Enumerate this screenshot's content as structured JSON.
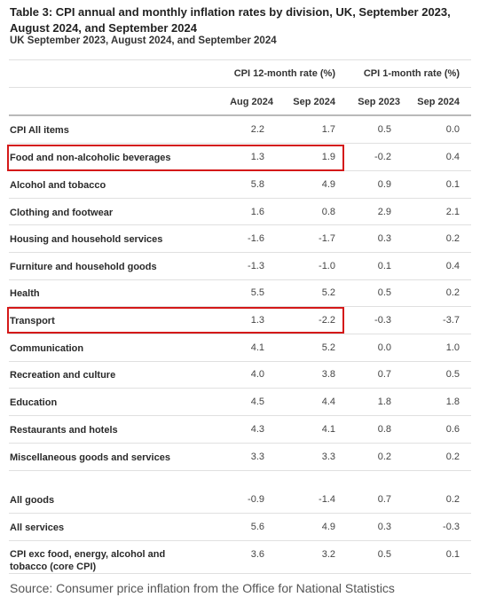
{
  "title": "Table 3: CPI annual and monthly inflation rates by division, UK, September 2023, August 2024, and September 2024",
  "subtitle": "UK September 2023, August 2024, and September 2024",
  "group_headers": {
    "annual": "CPI 12-month rate (%)",
    "monthly": "CPI 1-month rate (%)"
  },
  "columns": [
    "Aug 2024",
    "Sep 2024",
    "Sep 2023",
    "Sep 2024"
  ],
  "rows": [
    {
      "label": "CPI All items",
      "values": [
        "2.2",
        "1.7",
        "0.5",
        "0.0"
      ]
    },
    {
      "label": "Food and non-alcoholic beverages",
      "values": [
        "1.3",
        "1.9",
        "-0.2",
        "0.4"
      ]
    },
    {
      "label": "Alcohol and tobacco",
      "values": [
        "5.8",
        "4.9",
        "0.9",
        "0.1"
      ]
    },
    {
      "label": "Clothing and footwear",
      "values": [
        "1.6",
        "0.8",
        "2.9",
        "2.1"
      ]
    },
    {
      "label": "Housing and household services",
      "values": [
        "-1.6",
        "-1.7",
        "0.3",
        "0.2"
      ]
    },
    {
      "label": "Furniture and household goods",
      "values": [
        "-1.3",
        "-1.0",
        "0.1",
        "0.4"
      ]
    },
    {
      "label": "Health",
      "values": [
        "5.5",
        "5.2",
        "0.5",
        "0.2"
      ]
    },
    {
      "label": "Transport",
      "values": [
        "1.3",
        "-2.2",
        "-0.3",
        "-3.7"
      ]
    },
    {
      "label": "Communication",
      "values": [
        "4.1",
        "5.2",
        "0.0",
        "1.0"
      ]
    },
    {
      "label": "Recreation and culture",
      "values": [
        "4.0",
        "3.8",
        "0.7",
        "0.5"
      ]
    },
    {
      "label": "Education",
      "values": [
        "4.5",
        "4.4",
        "1.8",
        "1.8"
      ]
    },
    {
      "label": "Restaurants and hotels",
      "values": [
        "4.3",
        "4.1",
        "0.8",
        "0.6"
      ]
    },
    {
      "label": "Miscellaneous goods and services",
      "values": [
        "3.3",
        "3.3",
        "0.2",
        "0.2"
      ]
    },
    {
      "label": "All goods",
      "values": [
        "-0.9",
        "-1.4",
        "0.7",
        "0.2"
      ]
    },
    {
      "label": "All services",
      "values": [
        "5.6",
        "4.9",
        "0.3",
        "-0.3"
      ]
    },
    {
      "label": "CPI exc food, energy, alcohol and tobacco (core CPI)",
      "values": [
        "3.6",
        "3.2",
        "0.5",
        "0.1"
      ]
    }
  ],
  "highlighted_rows": [
    "Food and non-alcoholic beverages",
    "Transport"
  ],
  "highlight_color": "#d41919",
  "source": "Source: Consumer price inflation from the Office for National Statistics"
}
